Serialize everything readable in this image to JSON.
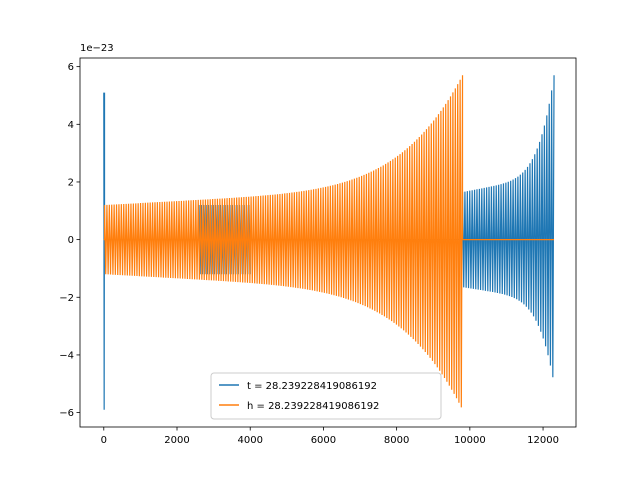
{
  "chart_data": {
    "type": "line",
    "title": "",
    "xlabel": "",
    "ylabel": "",
    "xlim": [
      -650,
      12900
    ],
    "ylim": [
      -6.5,
      6.3
    ],
    "y_offset_label": "1e−23",
    "xticks": [
      0,
      2000,
      4000,
      6000,
      8000,
      10000,
      12000
    ],
    "xtick_labels": [
      "0",
      "2000",
      "4000",
      "6000",
      "8000",
      "10000",
      "12000"
    ],
    "yticks": [
      -6,
      -4,
      -2,
      0,
      2,
      4,
      6
    ],
    "ytick_labels": [
      "−6",
      "−4",
      "−2",
      "0",
      "2",
      "4",
      "6"
    ],
    "grid": false,
    "legend_position": "lower-center",
    "series": [
      {
        "name": "t = 28.239228419086192",
        "color": "#1f77b4",
        "segments": [
          {
            "x_start": 0,
            "x_end": 20,
            "amp_start": 5.1,
            "amp_end": 5.1,
            "lower_start": -5.9,
            "lower_end": -5.9
          },
          {
            "x_start": 20,
            "x_end": 2600,
            "amp_start": 0,
            "amp_end": 0
          },
          {
            "x_start": 2600,
            "x_end": 4000,
            "amp_start": 1.2,
            "amp_end": 1.2
          },
          {
            "x_start": 4000,
            "x_end": 9800,
            "amp_start": 0,
            "amp_end": 0
          },
          {
            "x_start": 9800,
            "x_end": 12300,
            "amp_start": 1.65,
            "amp_end": 5.7,
            "lower_end": -5.0,
            "chirp": true
          }
        ]
      },
      {
        "name": "h = 28.239228419086192",
        "color": "#ff7f0e",
        "segments": [
          {
            "x_start": 0,
            "x_end": 20,
            "amp_start": 0,
            "amp_end": 0
          },
          {
            "x_start": 20,
            "x_end": 9800,
            "amp_start": 1.2,
            "amp_end": 5.7,
            "lower_end": -5.9,
            "chirp": true
          },
          {
            "x_start": 9800,
            "x_end": 12300,
            "amp_start": 0,
            "amp_end": 0
          }
        ]
      }
    ]
  }
}
